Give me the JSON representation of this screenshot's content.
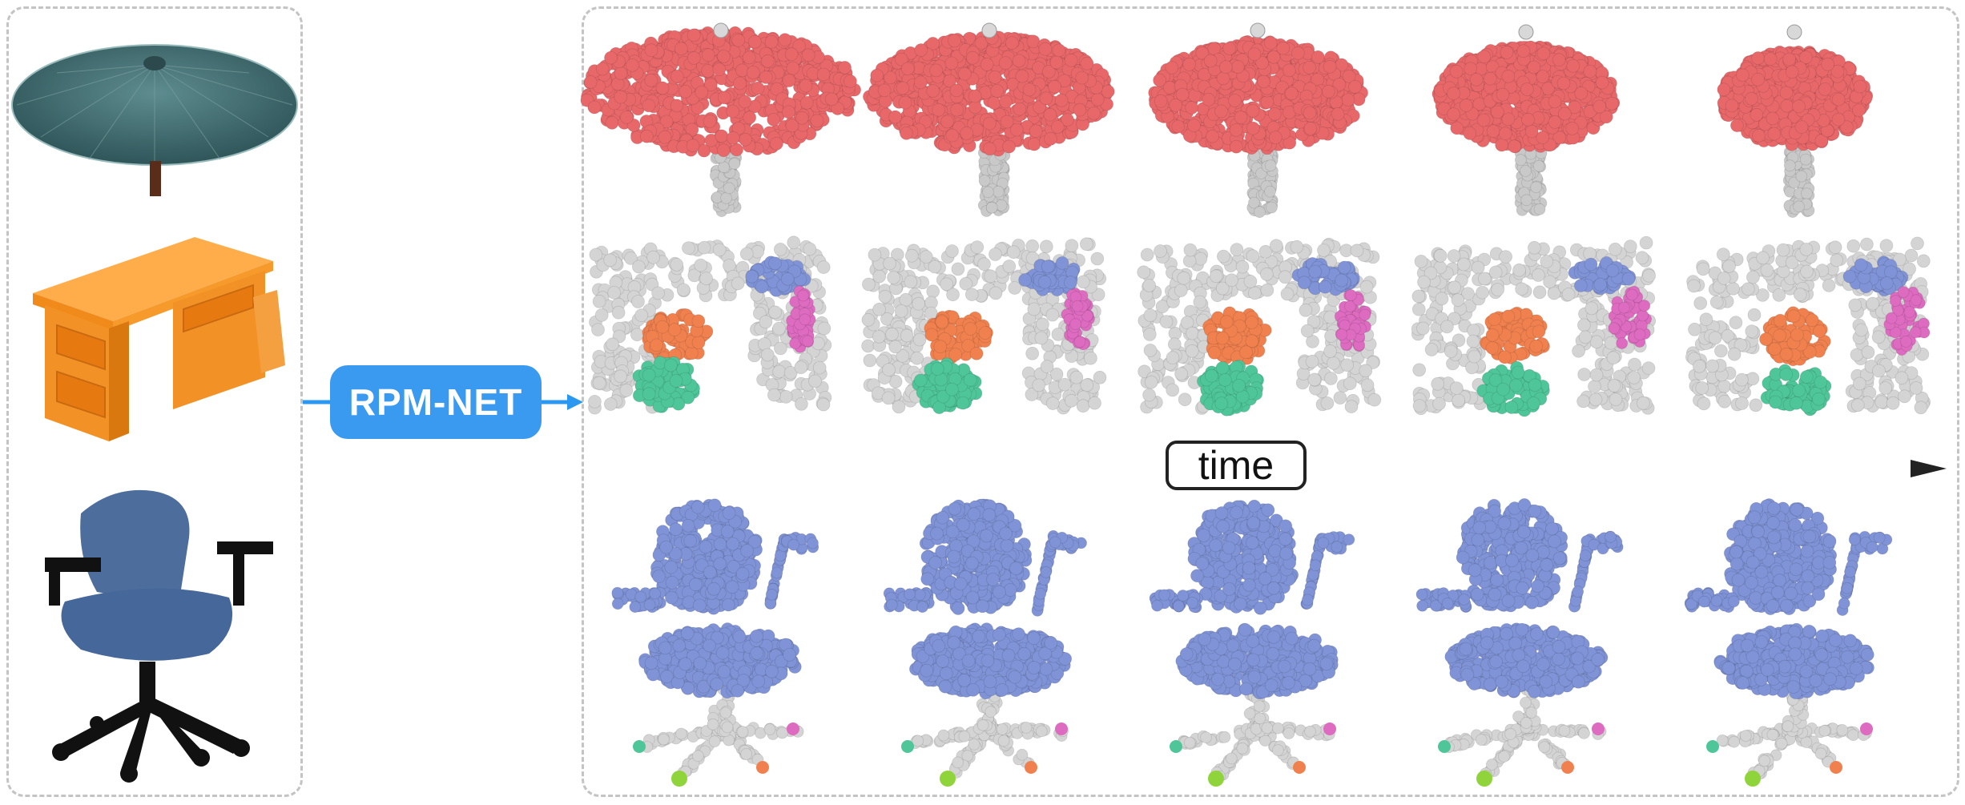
{
  "pipeline": {
    "method_label": "RPM-NET",
    "time_label": "time"
  },
  "inputs": [
    "umbrella",
    "desk",
    "office-chair"
  ],
  "sequence_frames": 5,
  "colors": {
    "umbrella_canopy": "#e8686a",
    "umbrella_pole": "#c9c9c9",
    "desk_body": "#d4d4d4",
    "desk_blue": "#7f93d6",
    "desk_pink": "#dd6bc0",
    "desk_orange": "#f0814f",
    "desk_green": "#4fc69a",
    "chair_blue": "#7f93d6",
    "chair_base": "#d4d4d4",
    "arrow_blue": "#2a97f0",
    "time_arrow_end": "#222222",
    "label_bg": "#3a9af0"
  }
}
